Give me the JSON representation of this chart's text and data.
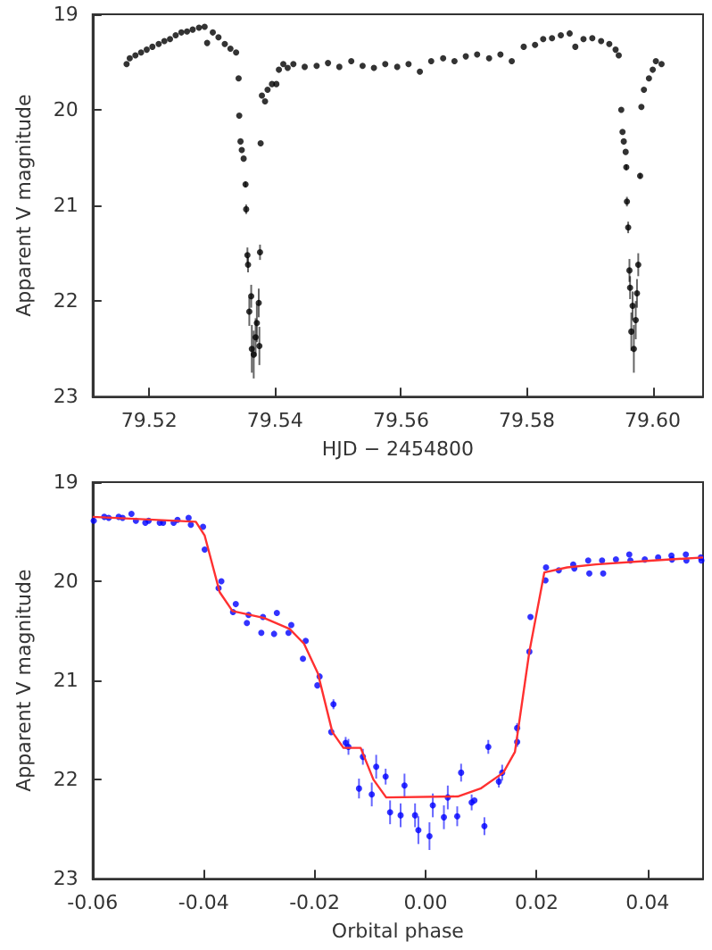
{
  "chart_data": [
    {
      "type": "scatter",
      "xlabel": "HJD − 2454800",
      "ylabel": "Apparent V magnitude",
      "xlim": [
        79.511,
        79.608
      ],
      "ylim": [
        23,
        19
      ],
      "xticks": [
        79.52,
        79.54,
        79.56,
        79.58,
        {
          "value": 79.6,
          "label": "79.60"
        }
      ],
      "yticks": [
        19,
        20,
        21,
        22,
        23
      ],
      "grid": false,
      "marker": "circle",
      "series": [
        {
          "color": "#000000",
          "x": [
            79.5164,
            79.5169,
            79.5178,
            79.5187,
            79.5196,
            79.5205,
            79.5215,
            79.5224,
            79.5233,
            79.5242,
            79.5251,
            79.526,
            79.5269,
            79.5279,
            79.5288,
            79.5292,
            79.5301,
            79.531,
            79.532,
            79.5329,
            79.5338,
            79.5342,
            79.5343,
            79.5345,
            79.5347,
            79.535,
            79.5353,
            79.5354,
            79.5356,
            79.5357,
            79.5359,
            79.5362,
            79.5363,
            79.5366,
            79.5369,
            79.5371,
            79.5374,
            79.5375,
            79.5376,
            79.5377,
            79.5379,
            79.5384,
            79.5388,
            79.5395,
            79.5402,
            79.5406,
            79.5413,
            79.542,
            79.5429,
            79.5447,
            79.5466,
            79.5484,
            79.5502,
            79.5521,
            79.5539,
            79.5557,
            79.5575,
            79.5594,
            79.5612,
            79.563,
            79.5648,
            79.5667,
            79.5685,
            79.5703,
            79.5721,
            79.574,
            79.5758,
            79.5776,
            79.5795,
            79.5813,
            79.5826,
            79.584,
            79.5854,
            79.5868,
            79.5877,
            79.589,
            79.5904,
            79.5918,
            79.5931,
            79.5941,
            79.5946,
            79.595,
            79.5952,
            79.5954,
            79.5957,
            79.5958,
            79.5959,
            79.5961,
            79.5963,
            79.5964,
            79.5966,
            79.5968,
            79.597,
            79.5973,
            79.5975,
            79.5977,
            79.598,
            79.5982,
            79.5986,
            79.5994,
            79.6,
            79.6005,
            79.6014
          ],
          "values": [
            19.52,
            19.46,
            19.43,
            19.4,
            19.37,
            19.34,
            19.31,
            19.28,
            19.26,
            19.22,
            19.19,
            19.18,
            19.16,
            19.14,
            19.13,
            19.3,
            19.19,
            19.24,
            19.31,
            19.36,
            19.4,
            19.67,
            20.06,
            20.33,
            20.42,
            20.51,
            20.78,
            21.04,
            21.52,
            21.62,
            22.11,
            21.95,
            22.5,
            22.56,
            22.38,
            22.23,
            22.02,
            22.47,
            21.49,
            20.35,
            19.85,
            19.91,
            19.79,
            19.73,
            19.73,
            19.58,
            19.52,
            19.56,
            19.52,
            19.55,
            19.54,
            19.51,
            19.55,
            19.49,
            19.54,
            19.56,
            19.52,
            19.55,
            19.52,
            19.6,
            19.49,
            19.46,
            19.49,
            19.44,
            19.42,
            19.46,
            19.42,
            19.49,
            19.34,
            19.32,
            19.26,
            19.25,
            19.22,
            19.2,
            19.34,
            19.26,
            19.25,
            19.28,
            19.31,
            19.37,
            19.43,
            20,
            20.23,
            20.33,
            20.44,
            20.6,
            20.96,
            21.23,
            21.68,
            21.86,
            22.32,
            22.05,
            22.5,
            22.2,
            21.92,
            21.62,
            20.69,
            19.97,
            19.79,
            19.67,
            19.58,
            19.49,
            19.52
          ],
          "errors": [
            null,
            null,
            null,
            null,
            null,
            null,
            null,
            null,
            null,
            null,
            null,
            null,
            null,
            null,
            null,
            null,
            null,
            null,
            null,
            null,
            null,
            null,
            null,
            null,
            null,
            null,
            0.03,
            0.05,
            0.08,
            0.08,
            0.15,
            0.12,
            0.25,
            0.25,
            0.2,
            0.2,
            0.15,
            0.2,
            0.08,
            null,
            null,
            null,
            null,
            null,
            null,
            null,
            null,
            null,
            null,
            null,
            null,
            null,
            null,
            null,
            null,
            null,
            null,
            null,
            null,
            null,
            null,
            null,
            null,
            null,
            null,
            null,
            null,
            null,
            null,
            null,
            null,
            null,
            null,
            null,
            null,
            null,
            null,
            null,
            null,
            null,
            null,
            null,
            null,
            null,
            null,
            0.03,
            0.05,
            0.06,
            0.12,
            0.12,
            0.2,
            0.15,
            0.25,
            0.2,
            0.15,
            0.12,
            0.03,
            null,
            null,
            null,
            null,
            null,
            null
          ]
        }
      ]
    },
    {
      "type": "scatter",
      "xlabel": "Orbital phase",
      "ylabel": "Apparent V magnitude",
      "xlim": [
        -0.06,
        0.05
      ],
      "ylim": [
        23,
        19
      ],
      "xticks": [
        -0.06,
        -0.04,
        -0.02,
        {
          "value": 0,
          "label": "0.00"
        },
        0.02,
        0.04
      ],
      "yticks": [
        19,
        20,
        21,
        22,
        23
      ],
      "grid": false,
      "marker": "circle",
      "series": [
        {
          "color": "#0000ff",
          "x": [
            -0.0598,
            -0.0579,
            -0.0571,
            -0.0553,
            -0.0546,
            -0.053,
            -0.0522,
            -0.0505,
            -0.0499,
            -0.0479,
            -0.0473,
            -0.0454,
            -0.0447,
            -0.0427,
            -0.0423,
            -0.0401,
            -0.0398,
            -0.0373,
            -0.0368,
            -0.0347,
            -0.0342,
            -0.0322,
            -0.0319,
            -0.0296,
            -0.0293,
            -0.0273,
            -0.0268,
            -0.0247,
            -0.0242,
            -0.0221,
            -0.0216,
            -0.0195,
            -0.0191,
            -0.017,
            -0.0166,
            -0.0144,
            -0.0139,
            -0.0113,
            -0.012,
            -0.0097,
            -0.0089,
            -0.0072,
            -0.0064,
            -0.0045,
            -0.0038,
            -0.0019,
            -0.0013,
            0.0007,
            0.0013,
            0.0033,
            0.004,
            0.0057,
            0.0064,
            0.0083,
            0.0088,
            0.0106,
            0.0113,
            0.0132,
            0.0138,
            0.0165,
            0.0165,
            0.0187,
            0.0189,
            0.0216,
            0.0217,
            0.024,
            0.0266,
            0.0268,
            0.0293,
            0.0295,
            0.0318,
            0.032,
            0.0343,
            0.0367,
            0.0369,
            0.0395,
            0.0419,
            0.0443,
            0.0444,
            0.0469,
            0.047,
            0.0496,
            0.0497
          ],
          "values": [
            19.39,
            19.35,
            19.36,
            19.35,
            19.36,
            19.32,
            19.39,
            19.41,
            19.39,
            19.41,
            19.41,
            19.41,
            19.38,
            19.36,
            19.43,
            19.45,
            19.68,
            20.07,
            20,
            20.31,
            20.23,
            20.42,
            20.34,
            20.52,
            20.36,
            20.53,
            20.32,
            20.52,
            20.44,
            20.78,
            20.6,
            21.05,
            20.96,
            21.52,
            21.24,
            21.63,
            21.67,
            21.77,
            22.09,
            22.15,
            21.87,
            21.97,
            22.33,
            22.36,
            22.06,
            22.36,
            22.51,
            22.57,
            22.26,
            22.38,
            22.18,
            22.37,
            21.93,
            22.23,
            22.21,
            22.47,
            21.67,
            22.02,
            21.93,
            21.48,
            21.62,
            20.71,
            20.36,
            19.99,
            19.86,
            19.89,
            19.83,
            19.87,
            19.79,
            19.92,
            19.79,
            19.92,
            19.78,
            19.73,
            19.79,
            19.78,
            19.76,
            19.74,
            19.78,
            19.73,
            19.79,
            19.76,
            19.79
          ],
          "errors": [
            null,
            null,
            null,
            null,
            null,
            null,
            null,
            null,
            null,
            null,
            null,
            null,
            null,
            null,
            null,
            null,
            null,
            null,
            null,
            null,
            null,
            null,
            null,
            null,
            null,
            null,
            null,
            null,
            null,
            null,
            null,
            null,
            null,
            null,
            0.05,
            0.06,
            0.08,
            0.08,
            0.1,
            0.12,
            0.12,
            0.08,
            0.12,
            0.12,
            0.12,
            0.12,
            0.14,
            0.14,
            0.12,
            0.12,
            0.12,
            0.1,
            0.09,
            0.08,
            null,
            0.09,
            0.07,
            0.06,
            0.08,
            0.05,
            0.05,
            null,
            null,
            null,
            null,
            null,
            null,
            null,
            null,
            null,
            null,
            null,
            null,
            null,
            null,
            null,
            null,
            null,
            null,
            null,
            null,
            null,
            null
          ]
        },
        {
          "type": "line",
          "color": "#ff3030",
          "marker": "none",
          "x": [
            -0.06,
            -0.0414,
            -0.0398,
            -0.0371,
            -0.0348,
            -0.0291,
            -0.0245,
            -0.0219,
            -0.0194,
            -0.0168,
            -0.0148,
            -0.0117,
            -0.0094,
            -0.0071,
            0.0058,
            0.0099,
            0.014,
            0.0161,
            0.0187,
            0.0214,
            0.0255,
            0.0307,
            0.041,
            0.05
          ],
          "values": [
            19.35,
            19.4,
            19.54,
            20.11,
            20.3,
            20.37,
            20.48,
            20.63,
            20.93,
            21.52,
            21.68,
            21.68,
            22,
            22.18,
            22.17,
            22.09,
            21.93,
            21.72,
            20.71,
            19.91,
            19.86,
            19.83,
            19.79,
            19.76
          ]
        }
      ]
    }
  ]
}
